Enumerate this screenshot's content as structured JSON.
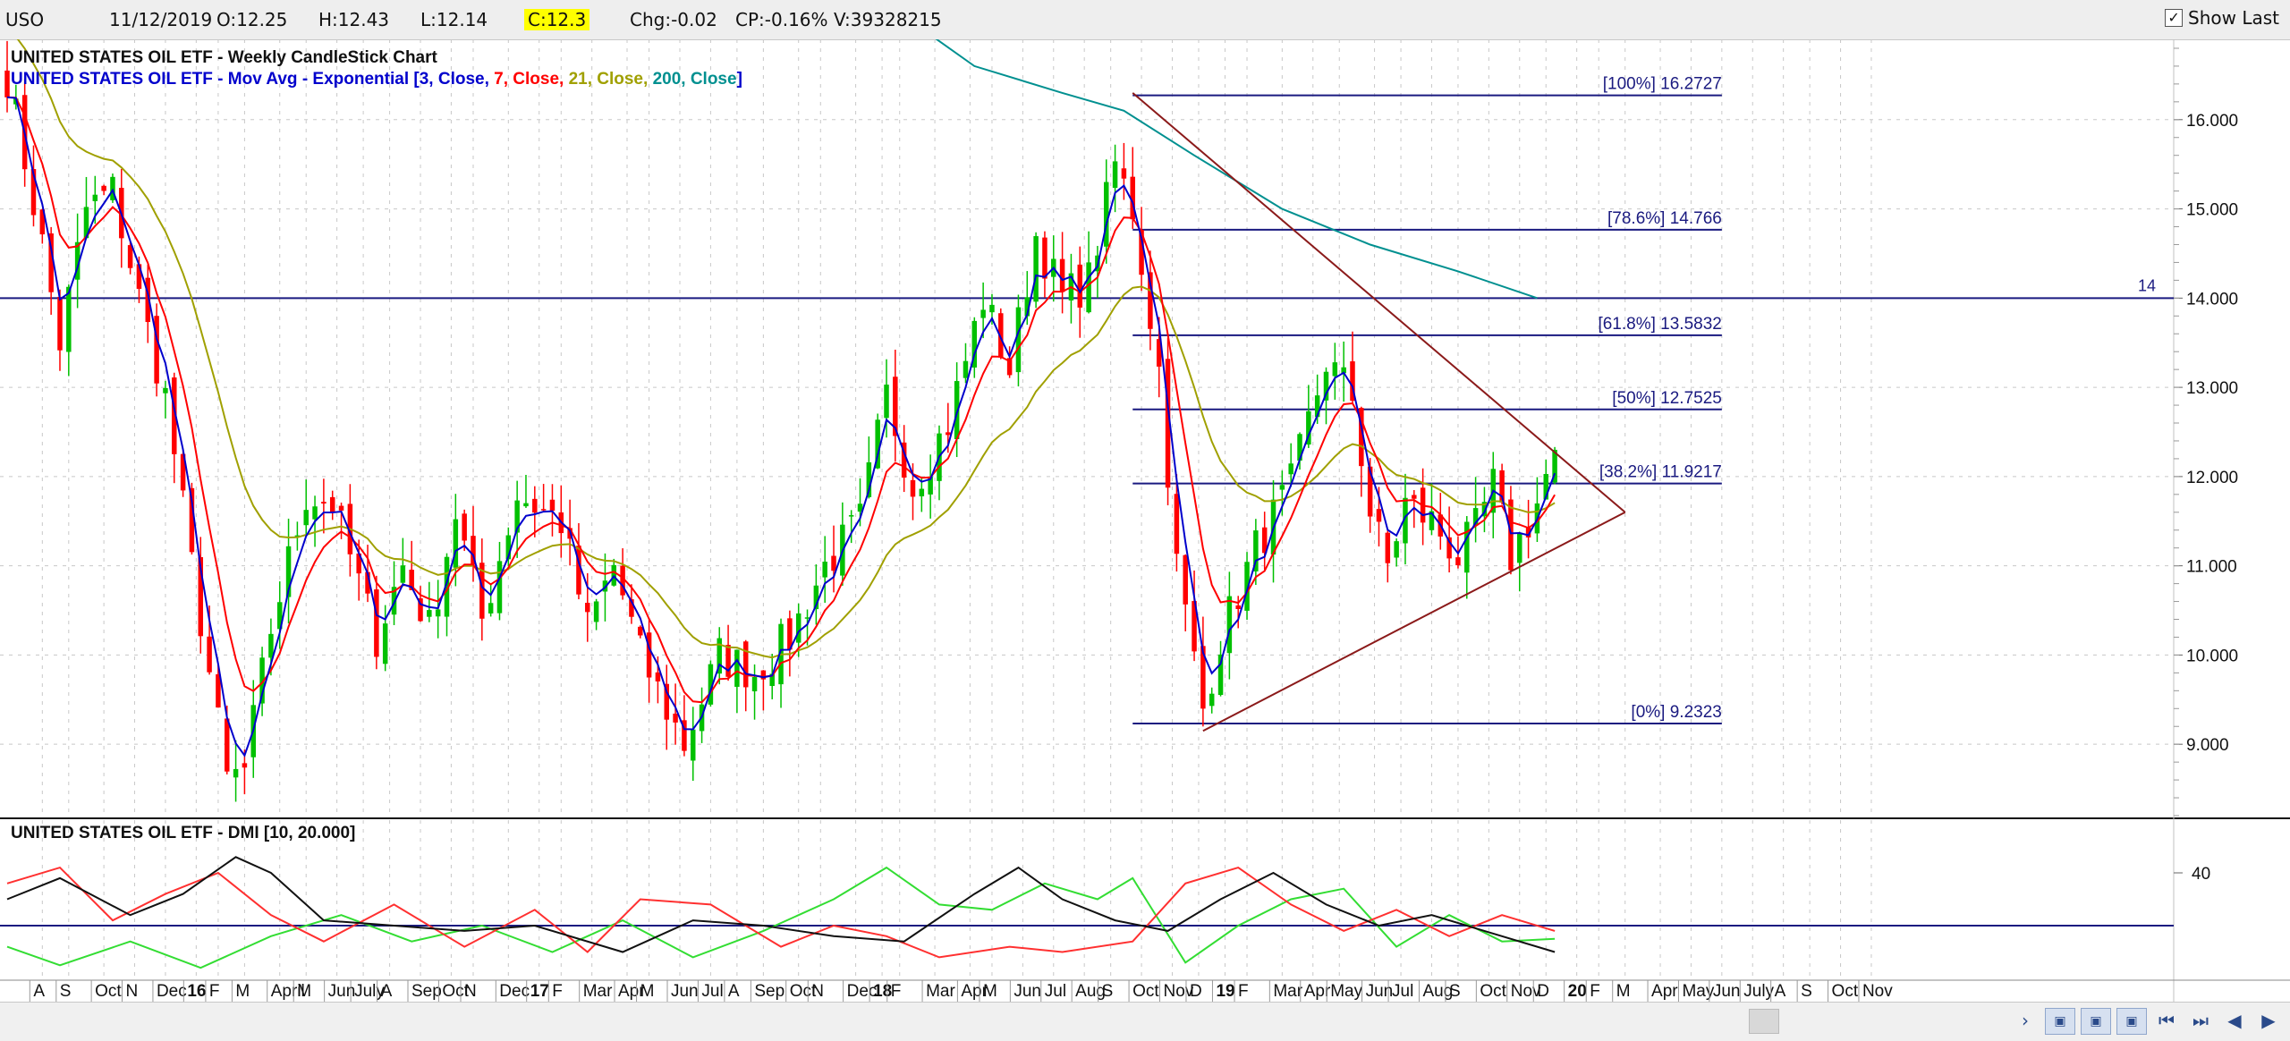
{
  "topbar": {
    "symbol": "USO",
    "date": "11/12/2019",
    "open": "O:12.25",
    "high": "H:12.43",
    "low": "L:12.14",
    "close": "C:12.3",
    "change": "Chg:-0.02",
    "change_pct": "CP:-0.16%",
    "volume": "V:39328215",
    "show_last_label": "Show Last",
    "show_last_checked": true
  },
  "colors": {
    "candle_up": "#00c000",
    "candle_down": "#ff0000",
    "ema3": "#0000cc",
    "ema7": "#ff0000",
    "ema21": "#a0a000",
    "ema200": "#009090",
    "fib": "#1a1a80",
    "trend": "#8b1a1a",
    "dmi_plus": "#33dd33",
    "dmi_minus": "#ff3030",
    "adx": "#111111",
    "grid": "#c8c8c8"
  },
  "chart_data": [
    {
      "type": "candlestick",
      "title": "UNITED STATES OIL ETF - Weekly CandleStick Chart",
      "legend": {
        "prefix": "UNITED STATES OIL ETF - Mov Avg - Exponential [",
        "items": [
          {
            "text": "3, Close, ",
            "color": "#0000cc"
          },
          {
            "text": "7, Close, ",
            "color": "#ff0000"
          },
          {
            "text": "21, Close, ",
            "color": "#a0a000"
          },
          {
            "text": "200, Close",
            "color": "#009090"
          }
        ],
        "suffix": "]"
      },
      "ylim": [
        8.2,
        16.9
      ],
      "y_ticks": [
        "16.000",
        "15.000",
        "14.000",
        "13.000",
        "12.000",
        "11.000",
        "10.000",
        "9.000"
      ],
      "weeks_total": 224,
      "key_points": [
        {
          "w": 0,
          "c": 16.5
        },
        {
          "w": 4,
          "c": 14.6
        },
        {
          "w": 6,
          "c": 13.5
        },
        {
          "w": 9,
          "c": 15.0
        },
        {
          "w": 12,
          "c": 15.2
        },
        {
          "w": 15,
          "c": 14.0
        },
        {
          "w": 18,
          "c": 12.9
        },
        {
          "w": 21,
          "c": 11.0
        },
        {
          "w": 25,
          "c": 8.6
        },
        {
          "w": 27,
          "c": 8.7
        },
        {
          "w": 30,
          "c": 10.3
        },
        {
          "w": 34,
          "c": 11.8
        },
        {
          "w": 37,
          "c": 11.7
        },
        {
          "w": 42,
          "c": 10.2
        },
        {
          "w": 45,
          "c": 11.0
        },
        {
          "w": 48,
          "c": 10.3
        },
        {
          "w": 51,
          "c": 11.6
        },
        {
          "w": 54,
          "c": 10.4
        },
        {
          "w": 58,
          "c": 11.8
        },
        {
          "w": 63,
          "c": 11.5
        },
        {
          "w": 66,
          "c": 10.3
        },
        {
          "w": 69,
          "c": 11.0
        },
        {
          "w": 72,
          "c": 10.0
        },
        {
          "w": 77,
          "c": 9.0
        },
        {
          "w": 81,
          "c": 10.0
        },
        {
          "w": 85,
          "c": 9.8
        },
        {
          "w": 89,
          "c": 10.2
        },
        {
          "w": 93,
          "c": 11.0
        },
        {
          "w": 97,
          "c": 11.5
        },
        {
          "w": 100,
          "c": 12.9
        },
        {
          "w": 103,
          "c": 11.9
        },
        {
          "w": 107,
          "c": 12.6
        },
        {
          "w": 111,
          "c": 14.0
        },
        {
          "w": 114,
          "c": 13.2
        },
        {
          "w": 117,
          "c": 14.7
        },
        {
          "w": 120,
          "c": 14.0
        },
        {
          "w": 123,
          "c": 14.2
        },
        {
          "w": 126,
          "c": 15.5
        },
        {
          "w": 128,
          "c": 15.0
        },
        {
          "w": 131,
          "c": 13.2
        },
        {
          "w": 133,
          "c": 11.0
        },
        {
          "w": 136,
          "c": 9.4
        },
        {
          "w": 138,
          "c": 10.2
        },
        {
          "w": 142,
          "c": 11.2
        },
        {
          "w": 146,
          "c": 11.9
        },
        {
          "w": 150,
          "c": 13.3
        },
        {
          "w": 153,
          "c": 12.9
        },
        {
          "w": 155,
          "c": 11.6
        },
        {
          "w": 157,
          "c": 11.0
        },
        {
          "w": 159,
          "c": 11.7
        },
        {
          "w": 162,
          "c": 11.5
        },
        {
          "w": 165,
          "c": 11.1
        },
        {
          "w": 167,
          "c": 11.4
        },
        {
          "w": 169,
          "c": 11.9
        },
        {
          "w": 171,
          "c": 11.1
        },
        {
          "w": 174,
          "c": 11.7
        },
        {
          "w": 176,
          "c": 12.3
        }
      ],
      "fib_levels": [
        {
          "label": "[100%] 16.2727",
          "value": 16.2727
        },
        {
          "label": "[78.6%] 14.766",
          "value": 14.766
        },
        {
          "label": "[61.8%] 13.5832",
          "value": 13.5832
        },
        {
          "label": "[50%] 12.7525",
          "value": 12.7525
        },
        {
          "label": "[38.2%] 11.9217",
          "value": 11.9217
        },
        {
          "label": "[0%] 9.2323",
          "value": 9.2323
        }
      ],
      "fib_week_range": [
        128,
        195
      ],
      "horizontal_line": {
        "value": 14.0,
        "label": "14"
      },
      "trend_upper": [
        {
          "w": 128,
          "v": 16.3
        },
        {
          "w": 184,
          "v": 11.6
        }
      ],
      "trend_lower": [
        {
          "w": 136,
          "v": 9.15
        },
        {
          "w": 184,
          "v": 11.6
        }
      ],
      "ema200": [
        {
          "w": 90,
          "v": 18.3
        },
        {
          "w": 100,
          "v": 17.3
        },
        {
          "w": 110,
          "v": 16.6
        },
        {
          "w": 120,
          "v": 16.3
        },
        {
          "w": 127,
          "v": 16.1
        },
        {
          "w": 135,
          "v": 15.6
        },
        {
          "w": 145,
          "v": 15.0
        },
        {
          "w": 155,
          "v": 14.6
        },
        {
          "w": 165,
          "v": 14.3
        },
        {
          "w": 174,
          "v": 14.0
        }
      ],
      "x_labels": [
        {
          "w": 4,
          "t": "A",
          "bold": false
        },
        {
          "w": 7,
          "t": "S",
          "bold": false
        },
        {
          "w": 11,
          "t": "Oct",
          "bold": false
        },
        {
          "w": 14.5,
          "t": "N",
          "bold": false
        },
        {
          "w": 18,
          "t": "Dec",
          "bold": false
        },
        {
          "w": 21.5,
          "t": "16",
          "bold": true
        },
        {
          "w": 24,
          "t": "F",
          "bold": false
        },
        {
          "w": 27,
          "t": "M",
          "bold": false
        },
        {
          "w": 31,
          "t": "April",
          "bold": false
        },
        {
          "w": 34,
          "t": "M",
          "bold": false
        },
        {
          "w": 37.5,
          "t": "Jun",
          "bold": false
        },
        {
          "w": 40.5,
          "t": "July",
          "bold": false
        },
        {
          "w": 43.5,
          "t": "A",
          "bold": false
        },
        {
          "w": 47,
          "t": "Sep",
          "bold": false
        },
        {
          "w": 50.5,
          "t": "Oct",
          "bold": false
        },
        {
          "w": 53,
          "t": "N",
          "bold": false
        },
        {
          "w": 57,
          "t": "Dec",
          "bold": false
        },
        {
          "w": 60.5,
          "t": "17",
          "bold": true
        },
        {
          "w": 63,
          "t": "F",
          "bold": false
        },
        {
          "w": 66.5,
          "t": "Mar",
          "bold": false
        },
        {
          "w": 70.5,
          "t": "Apr",
          "bold": false
        },
        {
          "w": 73,
          "t": "M",
          "bold": false
        },
        {
          "w": 76.5,
          "t": "Jun",
          "bold": false
        },
        {
          "w": 80,
          "t": "Jul",
          "bold": false
        },
        {
          "w": 83,
          "t": "A",
          "bold": false
        },
        {
          "w": 86,
          "t": "Sep",
          "bold": false
        },
        {
          "w": 90,
          "t": "Oct",
          "bold": false
        },
        {
          "w": 92.5,
          "t": "N",
          "bold": false
        },
        {
          "w": 96.5,
          "t": "Dec",
          "bold": false
        },
        {
          "w": 99.5,
          "t": "18",
          "bold": true
        },
        {
          "w": 101.5,
          "t": "F",
          "bold": false
        },
        {
          "w": 105.5,
          "t": "Mar",
          "bold": false
        },
        {
          "w": 109.5,
          "t": "Apr",
          "bold": false
        },
        {
          "w": 112,
          "t": "M",
          "bold": false
        },
        {
          "w": 115.5,
          "t": "Jun",
          "bold": false
        },
        {
          "w": 119,
          "t": "Jul",
          "bold": false
        },
        {
          "w": 122.5,
          "t": "Aug",
          "bold": false
        },
        {
          "w": 125.5,
          "t": "S",
          "bold": false
        },
        {
          "w": 129,
          "t": "Oct",
          "bold": false
        },
        {
          "w": 132.5,
          "t": "Nov",
          "bold": false
        },
        {
          "w": 135.5,
          "t": "D",
          "bold": false
        },
        {
          "w": 138.5,
          "t": "19",
          "bold": true
        },
        {
          "w": 141,
          "t": "F",
          "bold": false
        },
        {
          "w": 145,
          "t": "Mar",
          "bold": false
        },
        {
          "w": 148.5,
          "t": "Apr",
          "bold": false
        },
        {
          "w": 151.5,
          "t": "May",
          "bold": false
        },
        {
          "w": 155.5,
          "t": "Jun",
          "bold": false
        },
        {
          "w": 158.5,
          "t": "Jul",
          "bold": false
        },
        {
          "w": 162,
          "t": "Aug",
          "bold": false
        },
        {
          "w": 165,
          "t": "S",
          "bold": false
        },
        {
          "w": 168.5,
          "t": "Oct",
          "bold": false
        },
        {
          "w": 172,
          "t": "Nov",
          "bold": false
        },
        {
          "w": 175,
          "t": "D",
          "bold": false
        },
        {
          "w": 178.5,
          "t": "20",
          "bold": true
        },
        {
          "w": 181,
          "t": "F",
          "bold": false
        },
        {
          "w": 184,
          "t": "M",
          "bold": false
        },
        {
          "w": 188,
          "t": "Apr",
          "bold": false
        },
        {
          "w": 191.5,
          "t": "May",
          "bold": false
        },
        {
          "w": 195,
          "t": "Jun",
          "bold": false
        },
        {
          "w": 198.5,
          "t": "July",
          "bold": false
        },
        {
          "w": 202,
          "t": "A",
          "bold": false
        },
        {
          "w": 205,
          "t": "S",
          "bold": false
        },
        {
          "w": 208.5,
          "t": "Oct",
          "bold": false
        },
        {
          "w": 212,
          "t": "Nov",
          "bold": false
        }
      ]
    },
    {
      "type": "line",
      "title": "UNITED STATES OIL ETF - DMI [10, 20.000]",
      "ylim": [
        0,
        60
      ],
      "y_ticks": [
        "40"
      ],
      "reference_line": 20,
      "series": [
        {
          "key": "plus_di",
          "points": [
            {
              "w": 0,
              "v": 12
            },
            {
              "w": 6,
              "v": 5
            },
            {
              "w": 14,
              "v": 14
            },
            {
              "w": 22,
              "v": 4
            },
            {
              "w": 30,
              "v": 16
            },
            {
              "w": 38,
              "v": 24
            },
            {
              "w": 46,
              "v": 14
            },
            {
              "w": 54,
              "v": 20
            },
            {
              "w": 62,
              "v": 10
            },
            {
              "w": 70,
              "v": 22
            },
            {
              "w": 78,
              "v": 8
            },
            {
              "w": 86,
              "v": 18
            },
            {
              "w": 94,
              "v": 30
            },
            {
              "w": 100,
              "v": 42
            },
            {
              "w": 106,
              "v": 28
            },
            {
              "w": 112,
              "v": 26
            },
            {
              "w": 118,
              "v": 36
            },
            {
              "w": 124,
              "v": 30
            },
            {
              "w": 128,
              "v": 38
            },
            {
              "w": 134,
              "v": 6
            },
            {
              "w": 140,
              "v": 20
            },
            {
              "w": 146,
              "v": 30
            },
            {
              "w": 152,
              "v": 34
            },
            {
              "w": 158,
              "v": 12
            },
            {
              "w": 164,
              "v": 24
            },
            {
              "w": 170,
              "v": 14
            },
            {
              "w": 176,
              "v": 15
            }
          ]
        },
        {
          "key": "minus_di",
          "points": [
            {
              "w": 0,
              "v": 36
            },
            {
              "w": 6,
              "v": 42
            },
            {
              "w": 12,
              "v": 22
            },
            {
              "w": 18,
              "v": 32
            },
            {
              "w": 24,
              "v": 40
            },
            {
              "w": 30,
              "v": 24
            },
            {
              "w": 36,
              "v": 14
            },
            {
              "w": 44,
              "v": 28
            },
            {
              "w": 52,
              "v": 12
            },
            {
              "w": 60,
              "v": 26
            },
            {
              "w": 66,
              "v": 10
            },
            {
              "w": 72,
              "v": 30
            },
            {
              "w": 80,
              "v": 28
            },
            {
              "w": 88,
              "v": 12
            },
            {
              "w": 94,
              "v": 20
            },
            {
              "w": 100,
              "v": 16
            },
            {
              "w": 106,
              "v": 8
            },
            {
              "w": 114,
              "v": 12
            },
            {
              "w": 120,
              "v": 10
            },
            {
              "w": 128,
              "v": 14
            },
            {
              "w": 134,
              "v": 36
            },
            {
              "w": 140,
              "v": 42
            },
            {
              "w": 146,
              "v": 28
            },
            {
              "w": 152,
              "v": 18
            },
            {
              "w": 158,
              "v": 26
            },
            {
              "w": 164,
              "v": 16
            },
            {
              "w": 170,
              "v": 24
            },
            {
              "w": 176,
              "v": 18
            }
          ]
        },
        {
          "key": "adx",
          "points": [
            {
              "w": 0,
              "v": 30
            },
            {
              "w": 6,
              "v": 38
            },
            {
              "w": 14,
              "v": 24
            },
            {
              "w": 20,
              "v": 32
            },
            {
              "w": 26,
              "v": 46
            },
            {
              "w": 30,
              "v": 40
            },
            {
              "w": 36,
              "v": 22
            },
            {
              "w": 44,
              "v": 20
            },
            {
              "w": 52,
              "v": 18
            },
            {
              "w": 60,
              "v": 20
            },
            {
              "w": 70,
              "v": 10
            },
            {
              "w": 78,
              "v": 22
            },
            {
              "w": 86,
              "v": 20
            },
            {
              "w": 94,
              "v": 16
            },
            {
              "w": 102,
              "v": 14
            },
            {
              "w": 110,
              "v": 32
            },
            {
              "w": 115,
              "v": 42
            },
            {
              "w": 120,
              "v": 30
            },
            {
              "w": 126,
              "v": 22
            },
            {
              "w": 132,
              "v": 18
            },
            {
              "w": 138,
              "v": 30
            },
            {
              "w": 144,
              "v": 40
            },
            {
              "w": 150,
              "v": 28
            },
            {
              "w": 156,
              "v": 20
            },
            {
              "w": 162,
              "v": 24
            },
            {
              "w": 168,
              "v": 18
            },
            {
              "w": 176,
              "v": 10
            }
          ]
        }
      ]
    }
  ]
}
